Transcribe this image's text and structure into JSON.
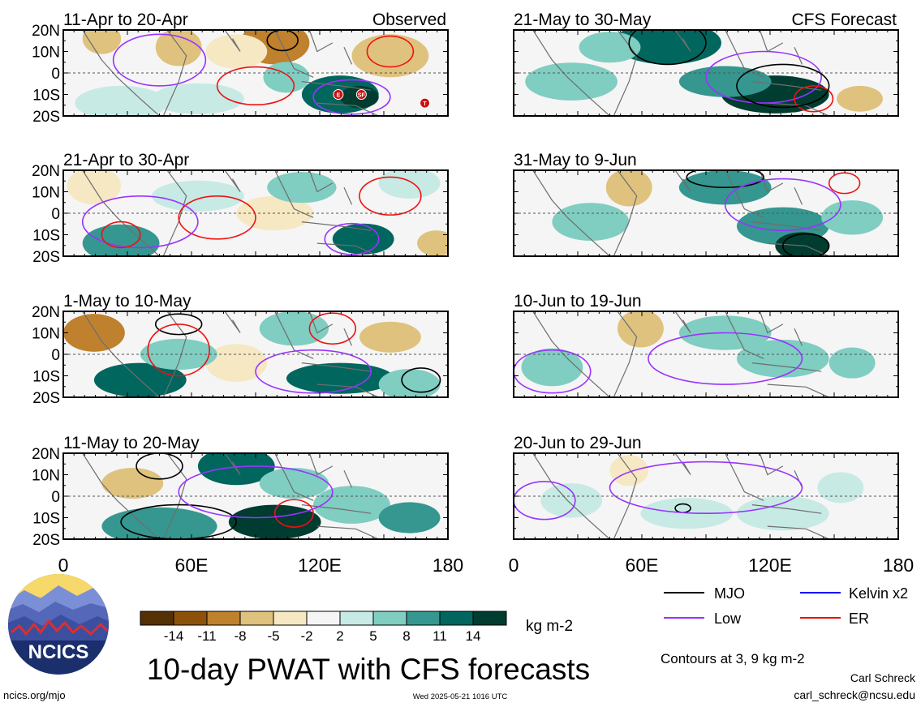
{
  "panels_left": [
    {
      "period": "11-Apr to 20-Apr",
      "tag": "Observed"
    },
    {
      "period": "21-Apr to 30-Apr",
      "tag": ""
    },
    {
      "period": "1-May to 10-May",
      "tag": ""
    },
    {
      "period": "11-May to 20-May",
      "tag": ""
    }
  ],
  "panels_right": [
    {
      "period": "21-May to 30-May",
      "tag": "CFS Forecast"
    },
    {
      "period": "31-May to 9-Jun",
      "tag": ""
    },
    {
      "period": "10-Jun to 19-Jun",
      "tag": ""
    },
    {
      "period": "20-Jun to 29-Jun",
      "tag": ""
    }
  ],
  "lat_ticks": [
    "20N",
    "10N",
    "0",
    "10S",
    "20S"
  ],
  "lon_ticks": [
    "0",
    "60E",
    "120E",
    "180"
  ],
  "wave_markers": [
    "E",
    "SF",
    "T"
  ],
  "colorbar": {
    "ticks": [
      "-14",
      "-11",
      "-8",
      "-5",
      "-2",
      "2",
      "5",
      "8",
      "11",
      "14"
    ],
    "colors": [
      "#543005",
      "#8c510a",
      "#bf812d",
      "#dfc27d",
      "#f6e8c3",
      "#f5f5f5",
      "#c7eae5",
      "#80cdc1",
      "#35978f",
      "#01665e",
      "#003c30"
    ],
    "units": "kg m-2"
  },
  "legend": [
    {
      "label": "MJO",
      "color": "#000000"
    },
    {
      "label": "Kelvin x2",
      "color": "#0000ff"
    },
    {
      "label": "Low",
      "color": "#9933ff"
    },
    {
      "label": "ER",
      "color": "#ee1111"
    }
  ],
  "contours_note": "Contours at 3, 9 kg m-2",
  "main_title": "10-day PWAT with CFS forecasts",
  "author": "Carl Schreck",
  "email": "carl_schreck@ncsu.edu",
  "url": "ncics.org/mjo",
  "timestamp": "Wed 2025-05-21 1016 UTC",
  "logo_text": "NCICS"
}
